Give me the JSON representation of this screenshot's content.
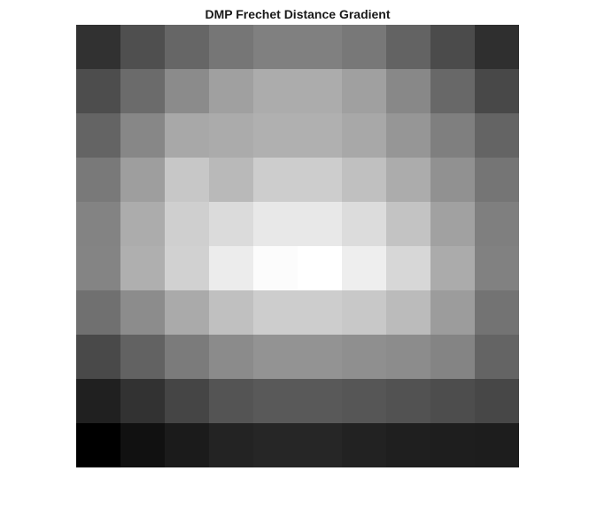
{
  "chart_data": {
    "type": "heatmap",
    "title": "DMP Frechet Distance Gradient",
    "xlabel": "",
    "ylabel": "",
    "colormap": "gray",
    "axes_visible": false,
    "colorbar": false,
    "rows": 10,
    "cols": 10,
    "clim": [
      0,
      255
    ],
    "values": [
      [
        49,
        79,
        102,
        118,
        128,
        128,
        120,
        99,
        75,
        47
      ],
      [
        77,
        107,
        139,
        160,
        172,
        172,
        160,
        136,
        104,
        72
      ],
      [
        100,
        135,
        168,
        171,
        176,
        176,
        168,
        150,
        127,
        100
      ],
      [
        121,
        158,
        199,
        185,
        205,
        205,
        192,
        172,
        145,
        117
      ],
      [
        131,
        172,
        207,
        219,
        232,
        232,
        220,
        195,
        161,
        127
      ],
      [
        132,
        175,
        209,
        236,
        252,
        255,
        238,
        215,
        171,
        129
      ],
      [
        112,
        140,
        170,
        192,
        205,
        205,
        200,
        187,
        156,
        115
      ],
      [
        73,
        98,
        123,
        139,
        147,
        147,
        143,
        140,
        132,
        100
      ],
      [
        32,
        50,
        69,
        84,
        89,
        89,
        86,
        82,
        77,
        71
      ],
      [
        0,
        17,
        27,
        35,
        38,
        38,
        34,
        31,
        30,
        29
      ]
    ]
  }
}
